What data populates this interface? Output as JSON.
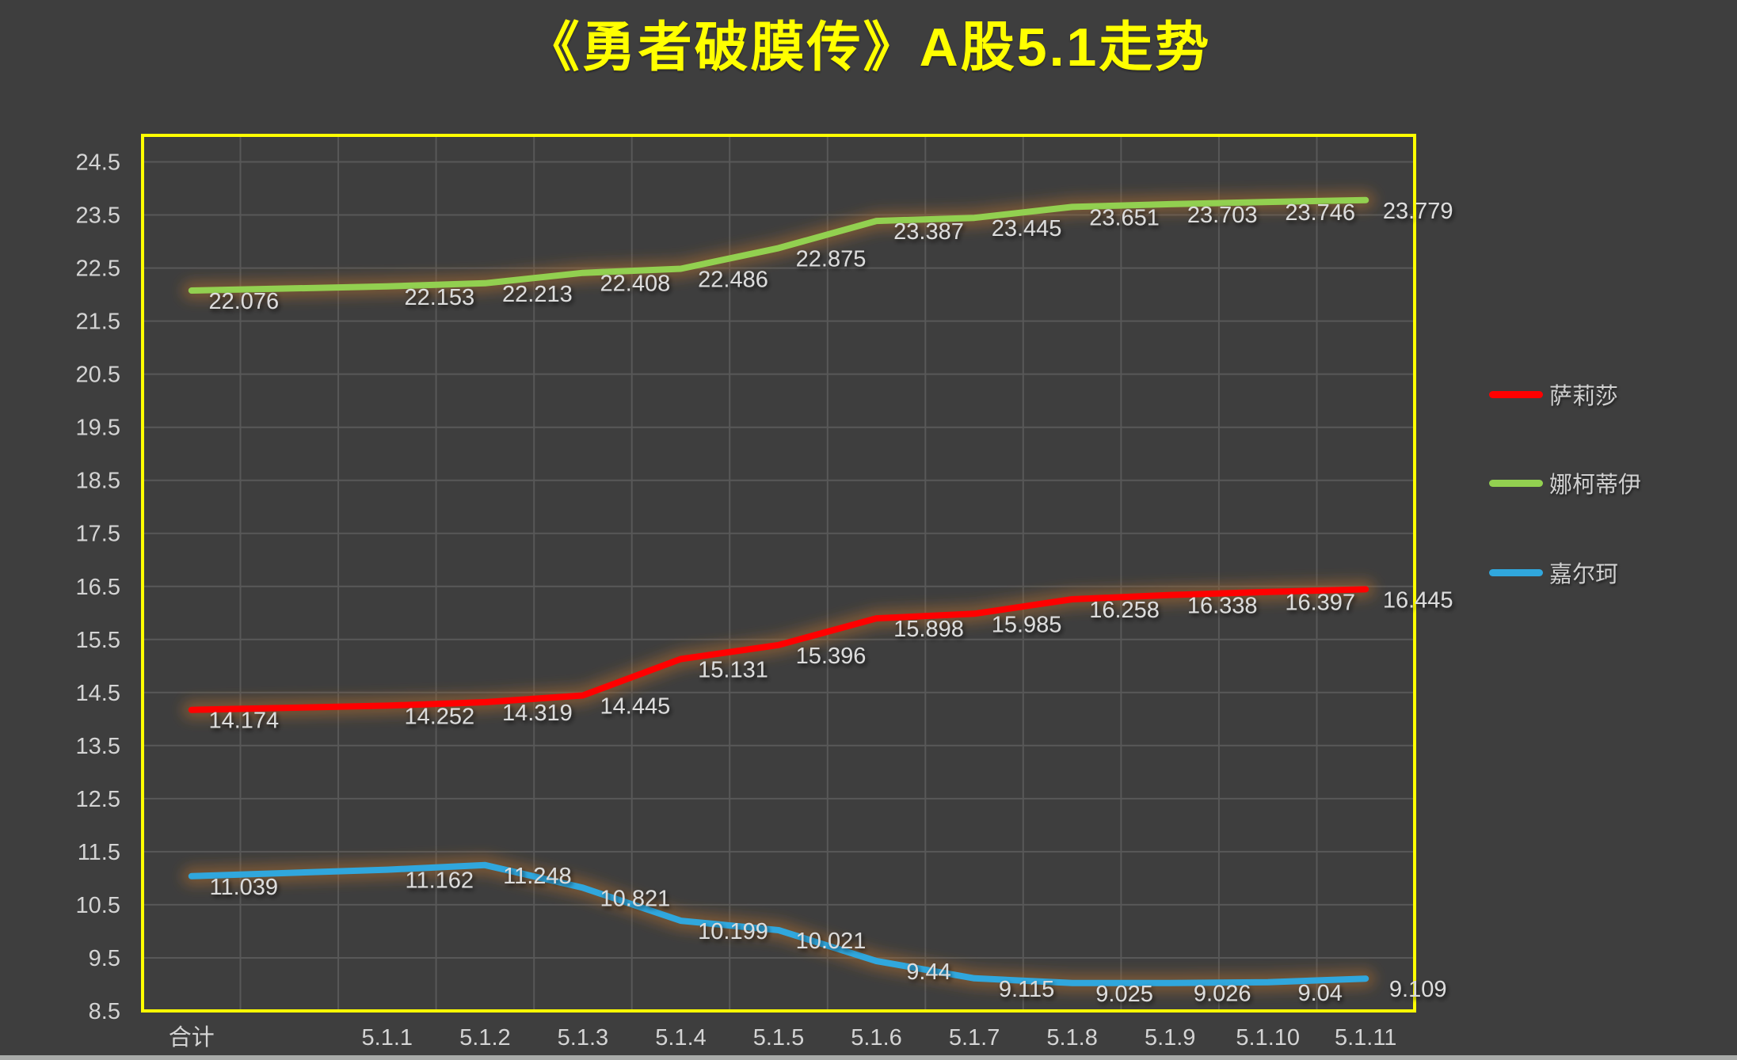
{
  "title": {
    "text": "《勇者破膜传》A股5.1走势"
  },
  "colors": {
    "background": "#3e3e3e",
    "title_text": "#ffff00",
    "plot_border": "#ffff00",
    "gridline": "#585858",
    "axis_text": "#d4d4d4",
    "data_label_text": "#dcdcdc",
    "line_glow": "#a66a2e"
  },
  "legend": {
    "position": "right",
    "items": [
      {
        "label": "萨莉莎",
        "color": "#ff0000"
      },
      {
        "label": "娜柯蒂伊",
        "color": "#92d050"
      },
      {
        "label": "嘉尔珂",
        "color": "#30a7dd"
      }
    ]
  },
  "chart_data": {
    "type": "line",
    "title": "《勇者破膜传》A股5.1走势",
    "xlabel": "",
    "ylabel": "",
    "categories": [
      "合计",
      "5.1.1",
      "5.1.2",
      "5.1.3",
      "5.1.4",
      "5.1.5",
      "5.1.6",
      "5.1.7",
      "5.1.8",
      "5.1.9",
      "5.1.10",
      "5.1.11"
    ],
    "series": [
      {
        "name": "萨莉莎",
        "color": "#ff0000",
        "values": [
          14.174,
          14.252,
          14.319,
          14.445,
          15.131,
          15.396,
          15.898,
          15.985,
          16.258,
          16.338,
          16.397,
          16.445
        ]
      },
      {
        "name": "娜柯蒂伊",
        "color": "#92d050",
        "values": [
          22.076,
          22.153,
          22.213,
          22.408,
          22.486,
          22.875,
          23.387,
          23.445,
          23.651,
          23.703,
          23.746,
          23.779
        ]
      },
      {
        "name": "嘉尔珂",
        "color": "#30a7dd",
        "values": [
          11.039,
          11.162,
          11.248,
          10.821,
          10.199,
          10.021,
          9.44,
          9.115,
          9.025,
          9.026,
          9.04,
          9.109
        ]
      }
    ],
    "y_ticks": [
      "24.5",
      "23.5",
      "22.5",
      "21.5",
      "20.5",
      "19.5",
      "18.5",
      "17.5",
      "16.5",
      "15.5",
      "14.5",
      "13.5",
      "12.5",
      "11.5",
      "10.5",
      "9.5",
      "8.5"
    ],
    "ylim": [
      8.5,
      25.0
    ],
    "grid": true,
    "data_labels": true,
    "legend_position": "right",
    "layout_hints": {
      "x_slot_count": 13,
      "category_slot_indices": [
        0,
        2,
        3,
        4,
        5,
        6,
        7,
        8,
        9,
        10,
        11,
        12
      ],
      "note": "second x slot is empty; lines connect straight across it"
    }
  }
}
